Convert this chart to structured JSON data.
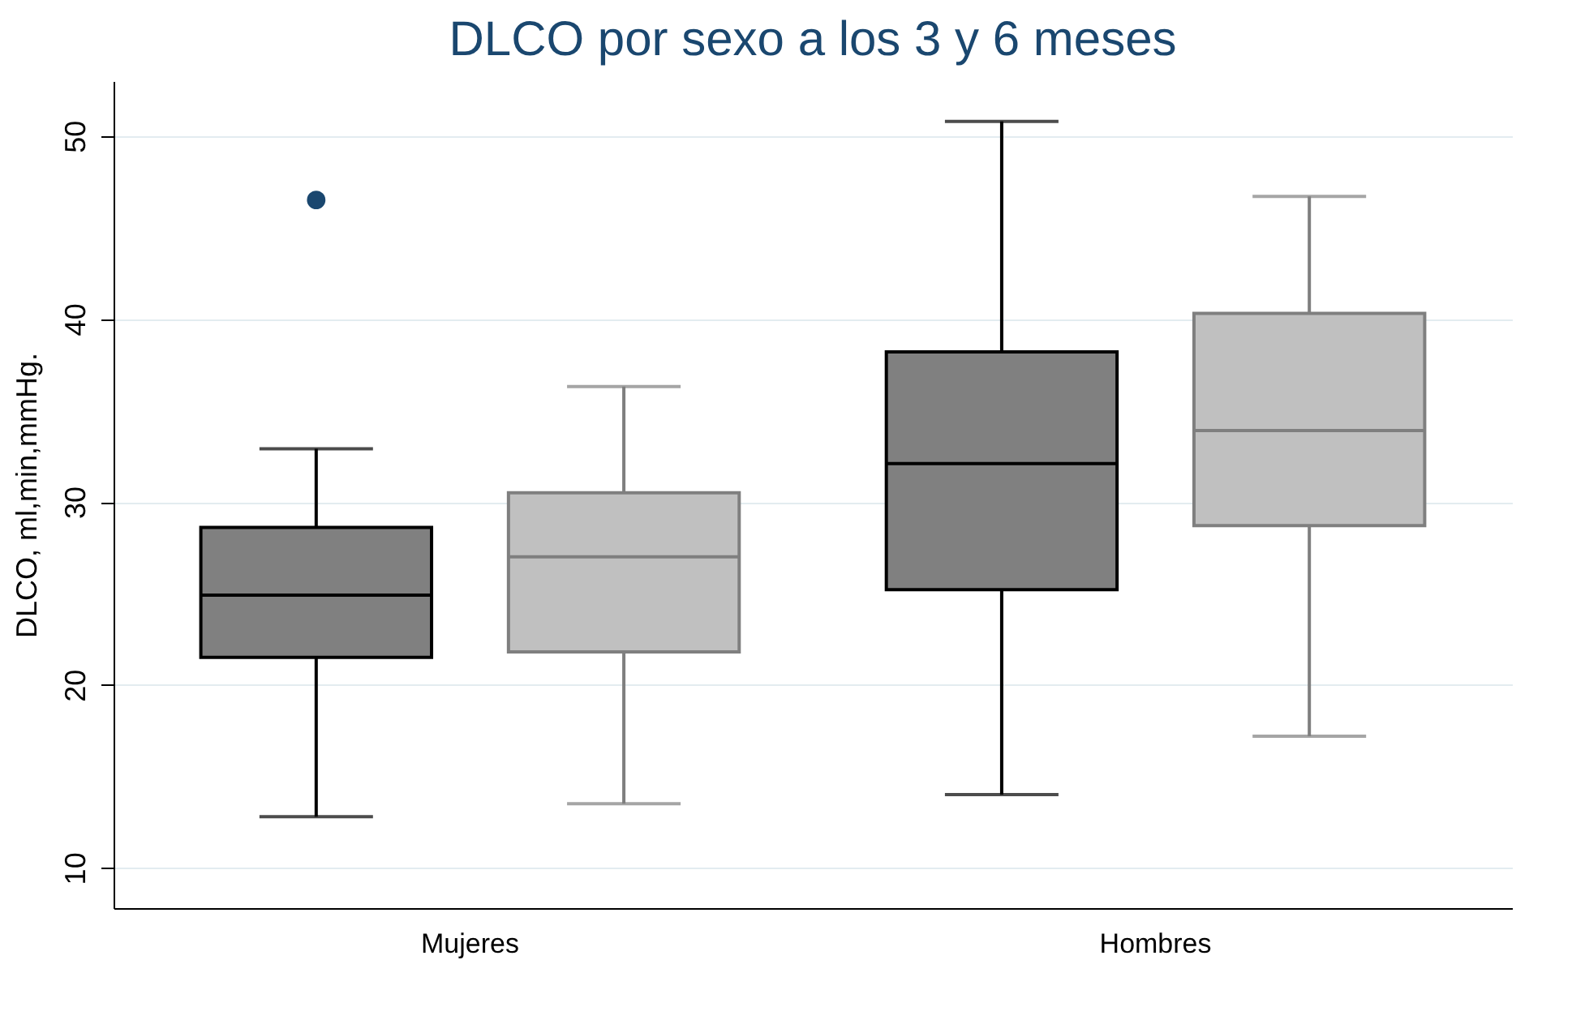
{
  "chart_data": {
    "type": "box",
    "title": "DLCO por sexo a los 3 y 6 meses",
    "ylabel": "DLCO, ml,min,mmHg.",
    "categories": [
      "Mujeres",
      "Hombres"
    ],
    "ylim": [
      7.8,
      53
    ],
    "yticks": [
      10,
      20,
      30,
      40,
      50
    ],
    "grid": "y",
    "series": [
      {
        "color": "#808080",
        "boxes": [
          {
            "low": 12.8,
            "q1": 21.5,
            "median": 24.9,
            "q3": 28.6,
            "high": 32.9,
            "outliers": [
              46.5
            ]
          },
          {
            "low": 14,
            "q1": 25.2,
            "median": 32.1,
            "q3": 38.2,
            "high": 50.8
          }
        ]
      },
      {
        "color": "#c0c0c0",
        "boxes": [
          {
            "low": 13.5,
            "q1": 21.8,
            "median": 27,
            "q3": 30.5,
            "high": 36.3
          },
          {
            "low": 17.2,
            "q1": 28.7,
            "median": 33.9,
            "q3": 40.3,
            "high": 46.7
          }
        ]
      }
    ]
  }
}
